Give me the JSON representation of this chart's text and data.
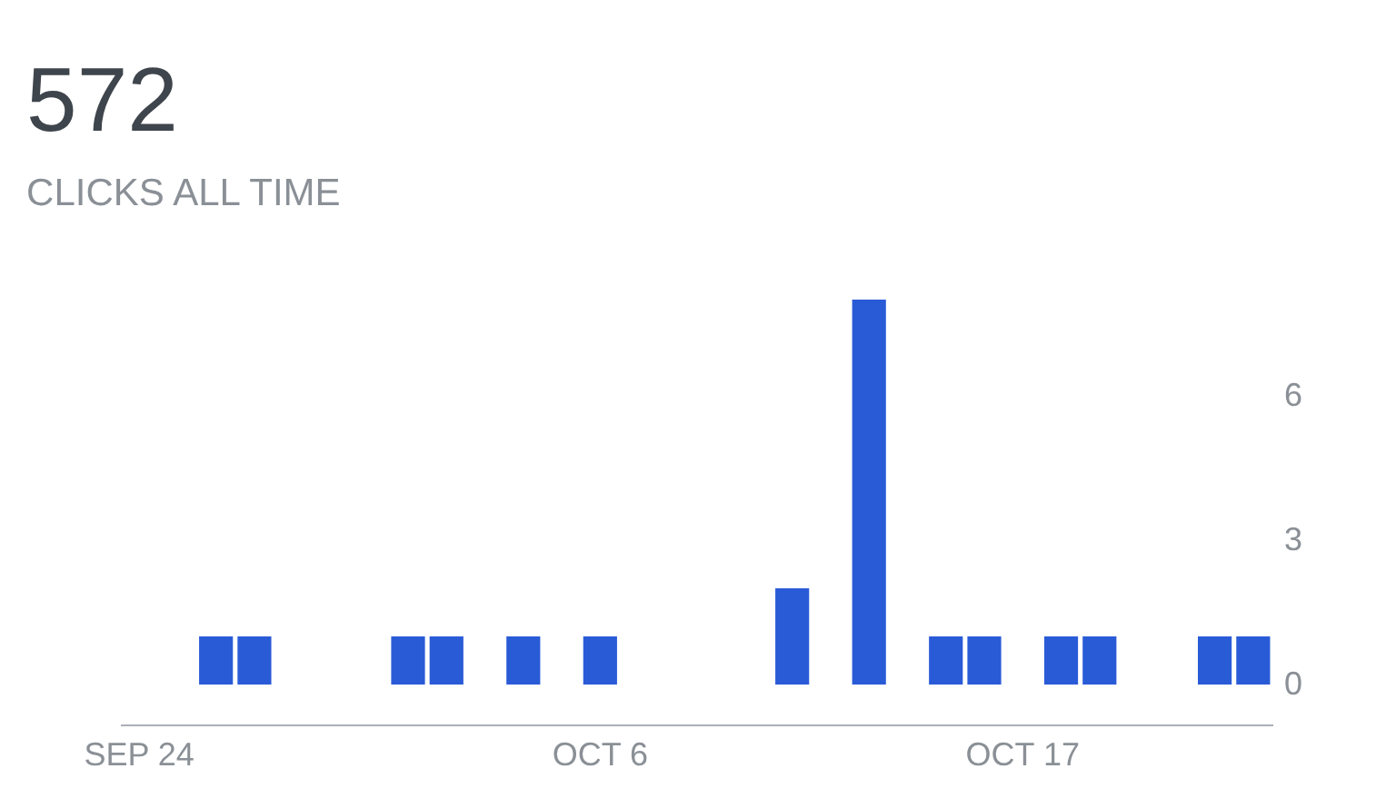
{
  "chart_data": {
    "type": "bar",
    "title": "572",
    "subtitle": "CLICKS ALL TIME",
    "categories": [
      "SEP 24",
      null,
      null,
      null,
      null,
      null,
      null,
      null,
      null,
      null,
      null,
      null,
      "OCT 6",
      null,
      null,
      null,
      null,
      null,
      null,
      null,
      null,
      null,
      null,
      "OCT 17",
      null,
      null,
      null,
      null,
      null,
      null
    ],
    "values": [
      null,
      null,
      1,
      1,
      null,
      null,
      null,
      1,
      1,
      null,
      1,
      null,
      1,
      null,
      null,
      null,
      null,
      2,
      null,
      8,
      null,
      1,
      1,
      null,
      1,
      1,
      null,
      null,
      1,
      1
    ],
    "color": "#2a5bd7",
    "ylim": [
      0,
      8
    ],
    "yticks": [
      0,
      3,
      6
    ],
    "grid": false
  }
}
